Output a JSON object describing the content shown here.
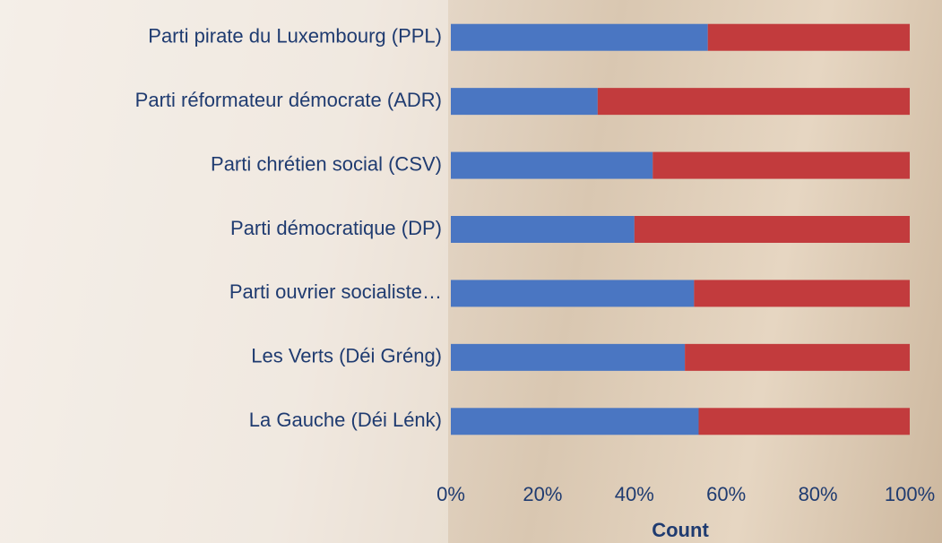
{
  "chart_data": {
    "type": "stacked-barh",
    "categories": [
      "Parti pirate du Luxembourg (PPL)",
      "Parti réformateur démocrate (ADR)",
      "Parti chrétien social (CSV)",
      "Parti démocratique (DP)",
      "Parti ouvrier socialiste…",
      "Les Verts (Déi Gréng)",
      "La Gauche (Déi Lénk)"
    ],
    "series": [
      {
        "color": "#4a76c2",
        "values": [
          56,
          32,
          44,
          40,
          53,
          51,
          54
        ]
      },
      {
        "color": "#c23b3d",
        "values": [
          44,
          68,
          56,
          60,
          47,
          49,
          46
        ]
      }
    ],
    "xlim": [
      0,
      100
    ],
    "xticks": [
      {
        "value": 0,
        "label": "0%"
      },
      {
        "value": 20,
        "label": "20%"
      },
      {
        "value": 40,
        "label": "40%"
      },
      {
        "value": 60,
        "label": "60%"
      },
      {
        "value": 80,
        "label": "80%"
      },
      {
        "value": 100,
        "label": "100%"
      }
    ],
    "xlabel": "Count"
  }
}
